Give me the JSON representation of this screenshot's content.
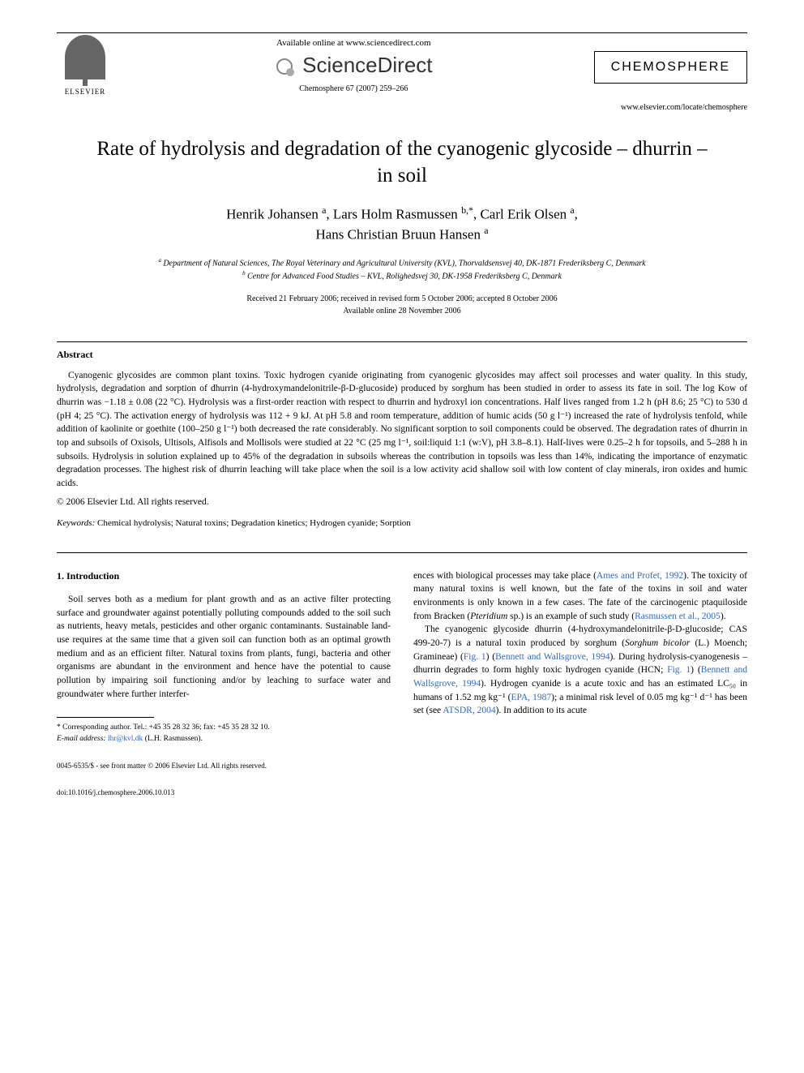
{
  "header": {
    "available_online": "Available online at www.sciencedirect.com",
    "sciencedirect": "ScienceDirect",
    "journal_box": "CHEMOSPHERE",
    "elsevier": "ELSEVIER",
    "journal_ref": "Chemosphere 67 (2007) 259–266",
    "journal_url": "www.elsevier.com/locate/chemosphere"
  },
  "title": "Rate of hydrolysis and degradation of the cyanogenic glycoside – dhurrin – in soil",
  "authors_html": "Henrik Johansen <sup>a</sup>, Lars Holm Rasmussen <sup>b,*</sup>, Carl Erik Olsen <sup>a</sup>, Hans Christian Bruun Hansen <sup>a</sup>",
  "affiliations": {
    "a": "Department of Natural Sciences, The Royal Veterinary and Agricultural University (KVL), Thorvaldsensvej 40, DK-1871 Frederiksberg C, Denmark",
    "b": "Centre for Advanced Food Studies – KVL, Rolighedsvej 30, DK-1958 Frederiksberg C, Denmark"
  },
  "dates": {
    "received": "Received 21 February 2006; received in revised form 5 October 2006; accepted 8 October 2006",
    "online": "Available online 28 November 2006"
  },
  "abstract": {
    "heading": "Abstract",
    "text": "Cyanogenic glycosides are common plant toxins. Toxic hydrogen cyanide originating from cyanogenic glycosides may affect soil processes and water quality. In this study, hydrolysis, degradation and sorption of dhurrin (4-hydroxymandelonitrile-β-D-glucoside) produced by sorghum has been studied in order to assess its fate in soil. The log Kow of dhurrin was −1.18 ± 0.08 (22 °C). Hydrolysis was a first-order reaction with respect to dhurrin and hydroxyl ion concentrations. Half lives ranged from 1.2 h (pH 8.6; 25 °C) to 530 d (pH 4; 25 °C). The activation energy of hydrolysis was 112 + 9 kJ. At pH 5.8 and room temperature, addition of humic acids (50 g l⁻¹) increased the rate of hydrolysis tenfold, while addition of kaolinite or goethite (100–250 g l⁻¹) both decreased the rate considerably. No significant sorption to soil components could be observed. The degradation rates of dhurrin in top and subsoils of Oxisols, Ultisols, Alfisols and Mollisols were studied at 22 °C (25 mg l⁻¹, soil:liquid 1:1 (w:V), pH 3.8–8.1). Half-lives were 0.25–2 h for topsoils, and 5–288 h in subsoils. Hydrolysis in solution explained up to 45% of the degradation in subsoils whereas the contribution in topsoils was less than 14%, indicating the importance of enzymatic degradation processes. The highest risk of dhurrin leaching will take place when the soil is a low activity acid shallow soil with low content of clay minerals, iron oxides and humic acids.",
    "copyright": "© 2006 Elsevier Ltd. All rights reserved."
  },
  "keywords": {
    "label": "Keywords:",
    "text": "Chemical hydrolysis; Natural toxins; Degradation kinetics; Hydrogen cyanide; Sorption"
  },
  "intro": {
    "heading": "1. Introduction",
    "col1_p1": "Soil serves both as a medium for plant growth and as an active filter protecting surface and groundwater against potentially polluting compounds added to the soil such as nutrients, heavy metals, pesticides and other organic contaminants. Sustainable land-use requires at the same time that a given soil can function both as an optimal growth medium and as an efficient filter. Natural toxins from plants, fungi, bacteria and other organisms are abundant in the environment and hence have the potential to cause pollution by impairing soil functioning and/or by leaching to surface water and groundwater where further interfer-",
    "col2_p1_pre": "ences with biological processes may take place (",
    "col2_p1_link1": "Ames and Profet, 1992",
    "col2_p1_mid1": "). The toxicity of many natural toxins is well known, but the fate of the toxins in soil and water environments is only known in a few cases. The fate of the carcinogenic ptaquiloside from Bracken (",
    "col2_p1_ital": "Pteridium",
    "col2_p1_mid2": " sp.) is an example of such study (",
    "col2_p1_link2": "Rasmussen et al., 2005",
    "col2_p1_end": ").",
    "col2_p2_pre": "The cyanogenic glycoside dhurrin (4-hydroxymandelonitrile-β-D-glucoside; CAS 499-20-7) is a natural toxin produced by sorghum (",
    "col2_p2_ital1": "Sorghum bicolor",
    "col2_p2_mid1": " (L.) Moench; Gramineae) (",
    "col2_p2_link1": "Fig. 1",
    "col2_p2_mid2": ") (",
    "col2_p2_link2": "Bennett and Wallsgrove, 1994",
    "col2_p2_mid3": "). During hydrolysis-cyanogenesis – dhurrin degrades to form highly toxic hydrogen cyanide (HCN; ",
    "col2_p2_link3": "Fig. 1",
    "col2_p2_mid4": ") (",
    "col2_p2_link4": "Bennett and Wallsgrove, 1994",
    "col2_p2_mid5": "). Hydrogen cyanide is a acute toxic and has an estimated LC₅₀ in humans of 1.52 mg kg⁻¹ (",
    "col2_p2_link5": "EPA, 1987",
    "col2_p2_mid6": "); a minimal risk level of 0.05 mg kg⁻¹ d⁻¹ has been set (see ",
    "col2_p2_link6": "ATSDR, 2004",
    "col2_p2_end": "). In addition to its acute"
  },
  "footnote": {
    "corr": "* Corresponding author. Tel.: +45 35 28 32 36; fax: +45 35 28 32 10.",
    "email_label": "E-mail address:",
    "email": "lhr@kvl.dk",
    "email_name": "(L.H. Rasmussen)."
  },
  "footer": {
    "line1": "0045-6535/$ - see front matter © 2006 Elsevier Ltd. All rights reserved.",
    "line2": "doi:10.1016/j.chemosphere.2006.10.013"
  },
  "colors": {
    "link": "#3366cc",
    "text": "#000000",
    "bg": "#ffffff"
  }
}
